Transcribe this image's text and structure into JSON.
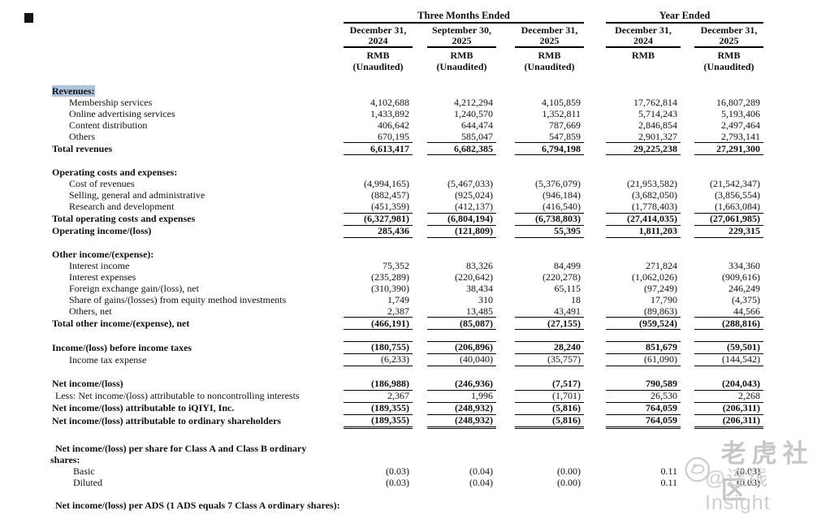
{
  "header": {
    "group_three_months": "Three Months Ended",
    "group_year": "Year Ended",
    "columns": [
      {
        "date": "December 31,\n2024",
        "currency": "RMB",
        "note": "(Unaudited)"
      },
      {
        "date": "September 30,\n2025",
        "currency": "RMB",
        "note": "(Unaudited)"
      },
      {
        "date": "December 31,\n2025",
        "currency": "RMB",
        "note": "(Unaudited)"
      },
      {
        "date": "December 31,\n2024",
        "currency": "RMB",
        "note": ""
      },
      {
        "date": "December 31,\n2025",
        "currency": "RMB",
        "note": "(Unaudited)"
      }
    ]
  },
  "table": {
    "rows": [
      {
        "label": "Revenues:",
        "labelBold": true,
        "highlight": true,
        "values": [
          "",
          "",
          "",
          "",
          ""
        ]
      },
      {
        "label": "Membership services",
        "indent": 21,
        "values": [
          "4,102,688",
          "4,212,294",
          "4,105,859",
          "17,762,814",
          "16,807,289"
        ]
      },
      {
        "label": "Online advertising services",
        "indent": 21,
        "values": [
          "1,433,892",
          "1,240,570",
          "1,352,811",
          "5,714,243",
          "5,193,406"
        ]
      },
      {
        "label": "Content distribution",
        "indent": 21,
        "values": [
          "406,642",
          "644,474",
          "787,669",
          "2,846,854",
          "2,497,464"
        ]
      },
      {
        "label": "Others",
        "indent": 21,
        "ruleBottom": "s",
        "values": [
          "670,195",
          "585,047",
          "547,859",
          "2,901,327",
          "2,793,141"
        ]
      },
      {
        "label": "Total revenues",
        "labelBold": true,
        "valuesBold": true,
        "ruleBottom": "s",
        "height": 15,
        "values": [
          "6,613,417",
          "6,682,385",
          "6,794,198",
          "29,225,238",
          "27,291,300"
        ]
      },
      {
        "spacer": 15
      },
      {
        "label": "Operating costs and expenses:",
        "labelBold": true,
        "values": [
          "",
          "",
          "",
          "",
          ""
        ]
      },
      {
        "label": "Cost of revenues",
        "indent": 21,
        "values": [
          "(4,994,165)",
          "(5,467,033)",
          "(5,376,079)",
          "(21,953,582)",
          "(21,542,347)"
        ]
      },
      {
        "label": "Selling, general and administrative",
        "indent": 21,
        "values": [
          "(882,457)",
          "(925,024)",
          "(946,184)",
          "(3,682,050)",
          "(3,856,554)"
        ]
      },
      {
        "label": "Research and development",
        "indent": 21,
        "ruleBottom": "s",
        "values": [
          "(451,359)",
          "(412,137)",
          "(416,540)",
          "(1,778,403)",
          "(1,663,084)"
        ]
      },
      {
        "label": "Total operating costs and expenses",
        "labelBold": true,
        "valuesBold": true,
        "ruleBottom": "s",
        "height": 15,
        "values": [
          "(6,327,981)",
          "(6,804,194)",
          "(6,738,803)",
          "(27,414,035)",
          "(27,061,985)"
        ]
      },
      {
        "label": "Operating income/(loss)",
        "labelBold": true,
        "valuesBold": true,
        "ruleBottom": "s",
        "height": 15,
        "values": [
          "285,436",
          "(121,809)",
          "55,395",
          "1,811,203",
          "229,315"
        ]
      },
      {
        "spacer": 15
      },
      {
        "label": "Other income/(expense):",
        "labelBold": true,
        "values": [
          "",
          "",
          "",
          "",
          ""
        ]
      },
      {
        "label": "Interest income",
        "indent": 21,
        "values": [
          "75,352",
          "83,326",
          "84,499",
          "271,824",
          "334,360"
        ]
      },
      {
        "label": "Interest expenses",
        "indent": 21,
        "values": [
          "(235,289)",
          "(220,642)",
          "(220,278)",
          "(1,062,026)",
          "(909,616)"
        ]
      },
      {
        "label": "Foreign exchange gain/(loss), net",
        "indent": 21,
        "values": [
          "(310,390)",
          "38,434",
          "65,115",
          "(97,249)",
          "246,249"
        ]
      },
      {
        "label": "Share of gains/(losses) from equity method investments",
        "indent": 21,
        "values": [
          "1,749",
          "310",
          "18",
          "17,790",
          "(4,375)"
        ]
      },
      {
        "label": "Others, net",
        "indent": 21,
        "ruleBottom": "s",
        "values": [
          "2,387",
          "13,485",
          "43,491",
          "(89,863)",
          "44,566"
        ]
      },
      {
        "label": "Total other income/(expense), net",
        "labelBold": true,
        "valuesBold": true,
        "ruleBottom": "s",
        "height": 15,
        "values": [
          "(466,191)",
          "(85,087)",
          "(27,155)",
          "(959,524)",
          "(288,816)"
        ]
      },
      {
        "spacer": 13
      },
      {
        "label": "Income/(loss) before income taxes",
        "labelBold": true,
        "valuesBold": true,
        "ruleTop": true,
        "ruleBottom": "s",
        "height": 15,
        "values": [
          "(180,755)",
          "(206,896)",
          "28,240",
          "851,679",
          "(59,501)"
        ]
      },
      {
        "label": "Income tax expense",
        "indent": 21,
        "ruleBottom": "s",
        "height": 15,
        "values": [
          "(6,233)",
          "(40,040)",
          "(35,757)",
          "(61,090)",
          "(144,542)"
        ]
      },
      {
        "spacer": 14
      },
      {
        "label": "Net income/(loss)",
        "labelBold": true,
        "valuesBold": true,
        "ruleBottom": "s",
        "height": 15,
        "values": [
          "(186,988)",
          "(246,936)",
          "(7,517)",
          "790,589",
          "(204,043)"
        ]
      },
      {
        "label": "Less: Net income/(loss) attributable to noncontrolling interests",
        "indent": 4,
        "ruleBottom": "s",
        "height": 15,
        "values": [
          "2,367",
          "1,996",
          "(1,701)",
          "26,530",
          "2,268"
        ]
      },
      {
        "label": "Net income/(loss) attributable to iQIYI, Inc.",
        "labelBold": true,
        "valuesBold": true,
        "ruleBottom": "s",
        "height": 15,
        "values": [
          "(189,355)",
          "(248,932)",
          "(5,816)",
          "764,059",
          "(206,311)"
        ]
      },
      {
        "label": "Net income/(loss) attributable to ordinary shareholders",
        "labelBold": true,
        "valuesBold": true,
        "ruleBottom": "d",
        "height": 16,
        "values": [
          "(189,355)",
          "(248,932)",
          "(5,816)",
          "764,059",
          "(206,311)"
        ]
      },
      {
        "spacer": 19
      },
      {
        "label": "Net income/(loss) per share for Class A and Class B ordinary\nshares:",
        "labelBold": true,
        "wrapIndent": true,
        "height": 29,
        "values": [
          "",
          "",
          "",
          "",
          ""
        ]
      },
      {
        "label": "Basic",
        "indent": 26,
        "values": [
          "(0.03)",
          "(0.04)",
          "(0.00)",
          "0.11",
          "(0.03)"
        ]
      },
      {
        "label": "Diluted",
        "indent": 26,
        "values": [
          "(0.03)",
          "(0.04)",
          "(0.00)",
          "0.11",
          "(0.03)"
        ]
      },
      {
        "spacer": 9
      },
      {
        "label": "Net income/(loss) per ADS (1 ADS equals 7 Class A ordinary shares):",
        "labelBold": true,
        "indent": 4,
        "values": [
          "",
          "",
          "",
          "",
          ""
        ]
      }
    ]
  },
  "watermark": {
    "community": "老虎社区",
    "handle": "@连线Insight",
    "color": "#c7c7c7"
  }
}
